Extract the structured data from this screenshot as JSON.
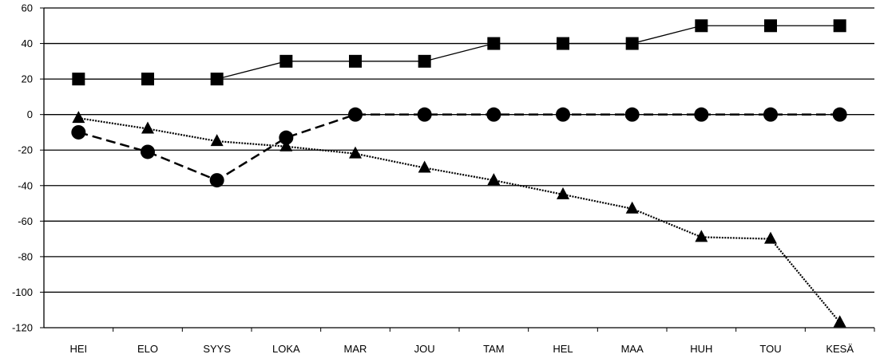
{
  "chart_data": {
    "type": "line",
    "categories": [
      "HEI",
      "ELO",
      "SYYS",
      "LOKA",
      "MAR",
      "JOU",
      "TAM",
      "HEL",
      "MAA",
      "HUH",
      "TOU",
      "KESÄ"
    ],
    "ylim": [
      -120,
      60
    ],
    "yticks": [
      60,
      40,
      20,
      0,
      -20,
      -40,
      -60,
      -80,
      -100,
      -120
    ],
    "ytick_labels": [
      "60",
      "40",
      "20",
      "0",
      "-20",
      "-40",
      "-60",
      "-80",
      "-100",
      "-120"
    ],
    "grid": "horizontal",
    "legend": "none",
    "title": "",
    "xlabel": "",
    "ylabel": "",
    "series": [
      {
        "marker": "square",
        "line_style": "solid",
        "color": "#000000",
        "values": [
          20,
          20,
          20,
          30,
          30,
          30,
          40,
          40,
          40,
          50,
          50,
          50
        ]
      },
      {
        "marker": "circle",
        "line_style": "dashed",
        "color": "#000000",
        "values": [
          -10,
          -21,
          -37,
          -13,
          0,
          0,
          0,
          0,
          0,
          0,
          0,
          0
        ]
      },
      {
        "marker": "triangle",
        "line_style": "dotted",
        "color": "#000000",
        "values": [
          -2,
          -8,
          -15,
          -18,
          -22,
          -30,
          -37,
          -45,
          -53,
          -69,
          -70,
          -117
        ]
      }
    ]
  }
}
